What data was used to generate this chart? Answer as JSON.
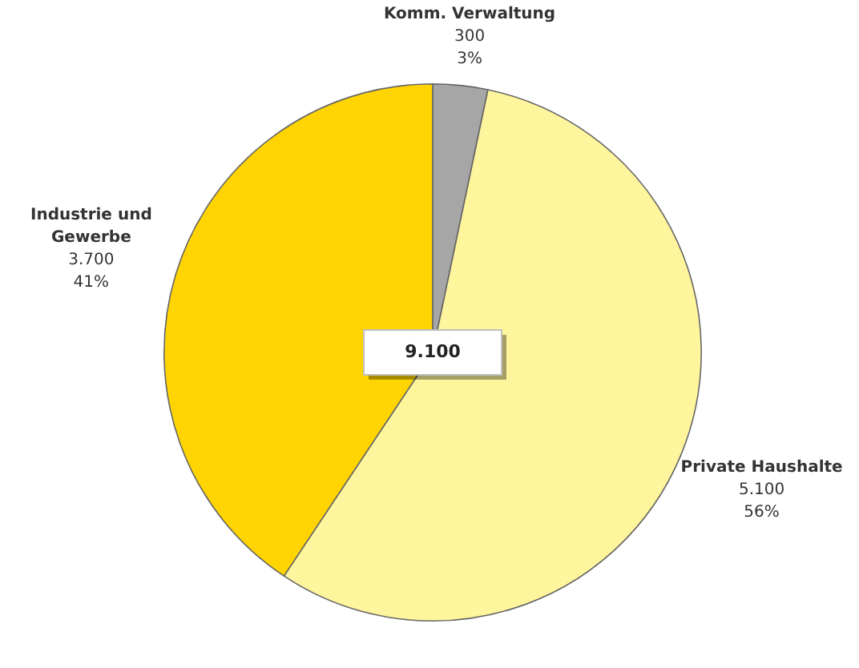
{
  "chart_data": {
    "type": "pie",
    "categories": [
      "Komm. Verwaltung",
      "Private Haushalte",
      "Industrie und Gewerbe"
    ],
    "values": [
      300,
      5100,
      3700
    ],
    "colors": [
      "#a6a6a6",
      "#fff59d",
      "#ffd400"
    ],
    "value_labels": [
      "300\n3%",
      "5.100\n56%",
      "3.700\n41%"
    ],
    "annotations": [
      "9.100"
    ],
    "legend": false
  }
}
